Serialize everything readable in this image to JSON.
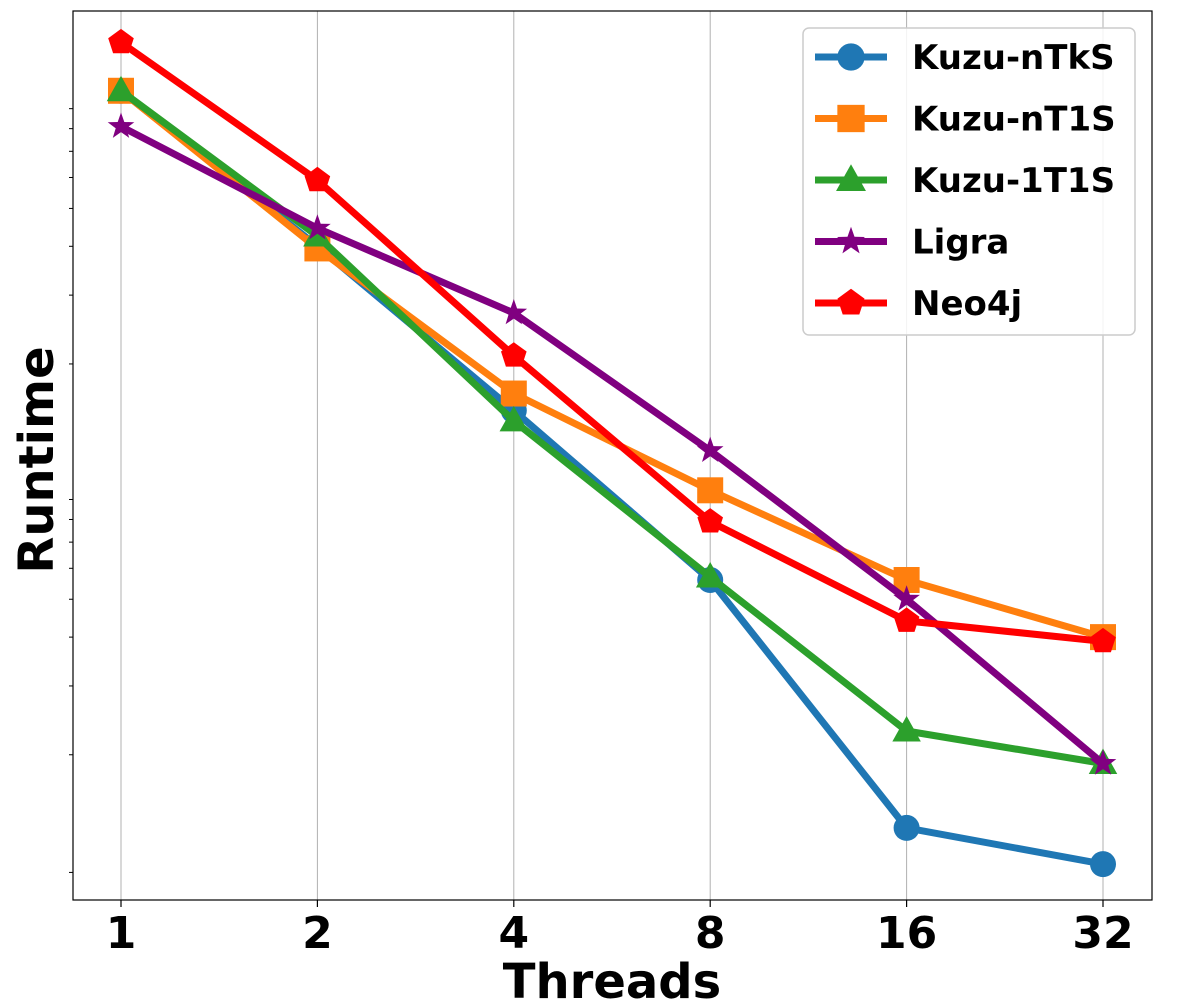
{
  "chart_data": {
    "type": "line",
    "title": "",
    "xlabel": "Threads",
    "ylabel": "Runtime",
    "categories": [
      "1",
      "2",
      "4",
      "8",
      "16",
      "32"
    ],
    "y_scale": "log",
    "y_tick_labels_visible": false,
    "grid": "vertical",
    "legend_position": "top-right",
    "series": [
      {
        "name": "Kuzu-nTkS",
        "color": "#1f77b4",
        "marker": "circle",
        "values": [
          100,
          40,
          15.2,
          5.6,
          1.3,
          1.05
        ]
      },
      {
        "name": "Kuzu-nT1S",
        "color": "#ff7f0e",
        "marker": "square",
        "values": [
          100,
          39.5,
          16.8,
          9.5,
          5.6,
          4.0
        ]
      },
      {
        "name": "Kuzu-1T1S",
        "color": "#2ca02c",
        "marker": "triangle",
        "values": [
          100,
          42.5,
          14.3,
          5.7,
          2.3,
          1.9
        ]
      },
      {
        "name": "Ligra",
        "color": "#800080",
        "marker": "star",
        "values": [
          81,
          44.5,
          27,
          12,
          5.0,
          1.9
        ]
      },
      {
        "name": "Neo4j",
        "color": "#ff0000",
        "marker": "pentagon",
        "values": [
          133,
          59,
          21,
          7.9,
          4.4,
          3.9
        ]
      }
    ]
  }
}
